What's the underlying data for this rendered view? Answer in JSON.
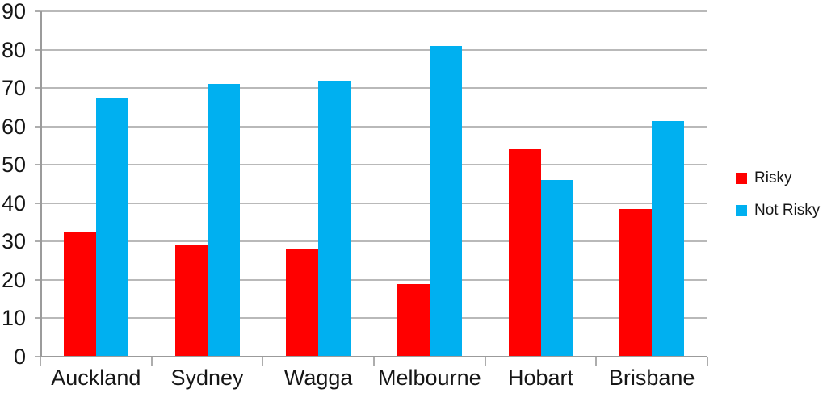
{
  "chart_data": {
    "type": "bar",
    "title": "",
    "xlabel": "",
    "ylabel": "",
    "categories": [
      "Auckland",
      "Sydney",
      "Wagga",
      "Melbourne",
      "Hobart",
      "Brisbane"
    ],
    "series": [
      {
        "name": "Risky",
        "color": "#FF0000",
        "values": [
          32.5,
          29,
          28,
          19,
          54,
          38.5
        ]
      },
      {
        "name": "Not Risky",
        "color": "#00B0F0",
        "values": [
          67.5,
          71,
          72,
          81,
          46,
          61.5
        ]
      }
    ],
    "ylim": [
      0,
      90
    ],
    "yticks": [
      0,
      10,
      20,
      30,
      40,
      50,
      60,
      70,
      80,
      90
    ],
    "grid": true,
    "legend_position": "right"
  },
  "colors": {
    "background": "#ffffff",
    "gridline": "#b9b9b9",
    "axis": "#9b9b9b",
    "text": "#161616",
    "series_risky": "#FF0000",
    "series_not_risky": "#00B0F0"
  }
}
